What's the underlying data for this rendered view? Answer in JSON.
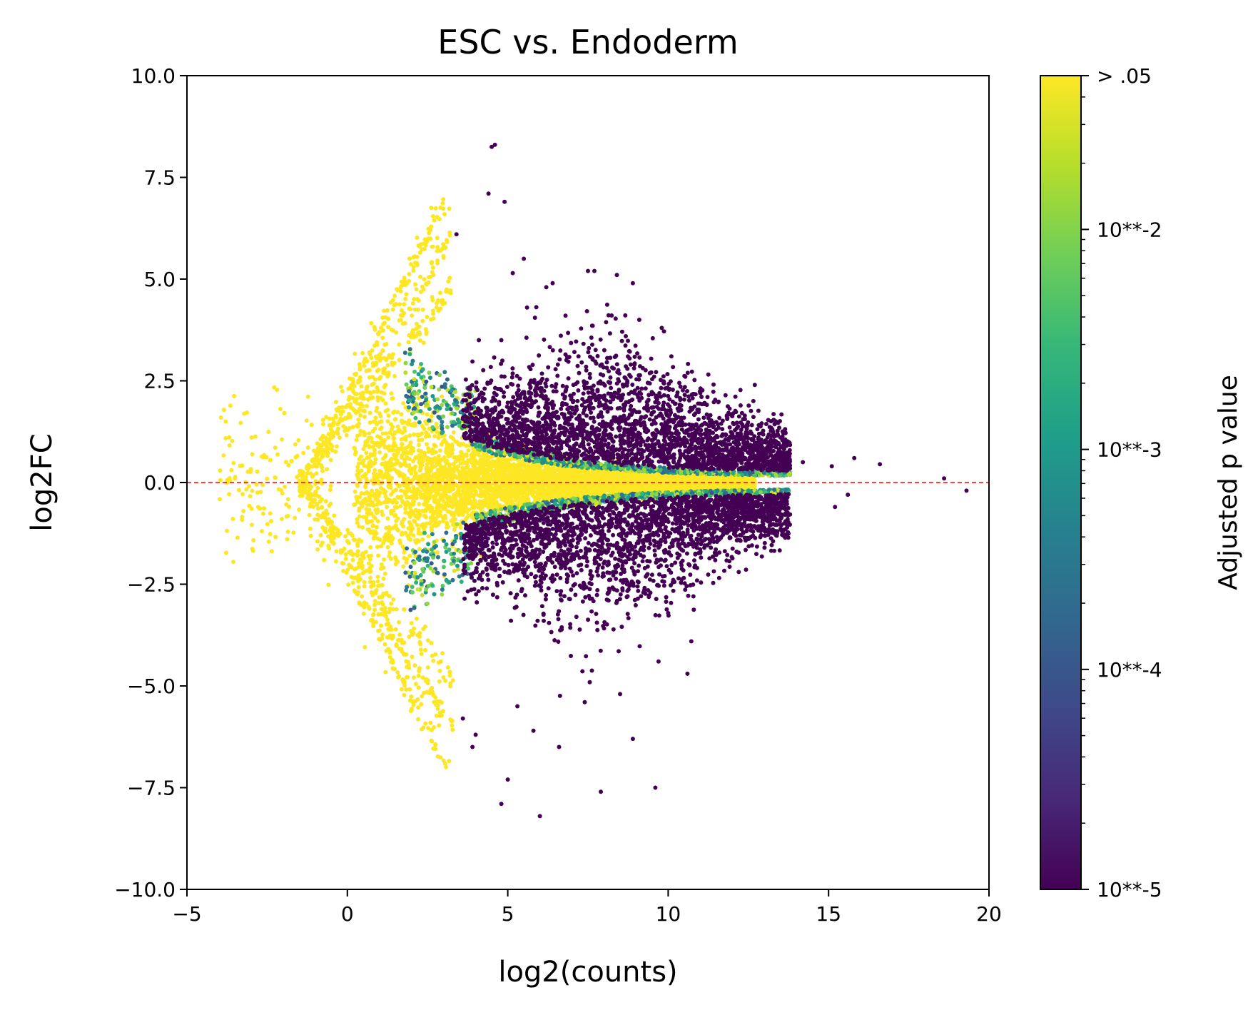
{
  "chart_data": {
    "type": "scatter",
    "title": "ESC vs. Endoderm",
    "xlabel": "log2(counts)",
    "ylabel": "log2FC",
    "xlim": [
      -5,
      20
    ],
    "ylim": [
      -10,
      10
    ],
    "xticks": [
      -5,
      0,
      5,
      10,
      15,
      20
    ],
    "xtick_labels": [
      "−5",
      "0",
      "5",
      "10",
      "15",
      "20"
    ],
    "yticks": [
      10,
      7.5,
      5,
      2.5,
      0,
      -2.5,
      -5,
      -7.5,
      -10
    ],
    "ytick_labels": [
      "10.0",
      "7.5",
      "5.0",
      "2.5",
      "0.0",
      "−2.5",
      "−5.0",
      "−7.5",
      "−10.0"
    ],
    "reference_line": {
      "y": 0,
      "color": "#ff0000",
      "style": "dashed"
    },
    "grid": false,
    "colorbar": {
      "label": "Adjusted p value",
      "colormap": "viridis",
      "scale": "log",
      "range": [
        1e-05,
        0.05
      ],
      "ticks": [
        {
          "value": 0.05,
          "label": "> .05"
        },
        {
          "value": 0.01,
          "label": "10**-2"
        },
        {
          "value": 0.001,
          "label": "10**-3"
        },
        {
          "value": 0.0001,
          "label": "10**-4"
        },
        {
          "value": 1e-05,
          "label": "10**-5"
        }
      ],
      "colors": [
        "#440154",
        "#482878",
        "#3e4989",
        "#31688e",
        "#26828e",
        "#1f9e89",
        "#35b779",
        "#6ece58",
        "#b5de2b",
        "#fde725"
      ]
    },
    "series": [
      {
        "points": [
          [
            4.5,
            8.25
          ],
          [
            4.6,
            8.3
          ],
          [
            4.4,
            7.1
          ],
          [
            4.9,
            6.9
          ],
          [
            3.4,
            6.1
          ],
          [
            5.5,
            5.5
          ],
          [
            7.5,
            5.2
          ],
          [
            7.7,
            5.2
          ],
          [
            8.4,
            5.1
          ],
          [
            8.9,
            4.9
          ],
          [
            6.4,
            4.9
          ],
          [
            6.2,
            4.8
          ],
          [
            10.1,
            3.1
          ],
          [
            11.3,
            1.5
          ],
          [
            12.7,
            2.4
          ],
          [
            14.2,
            0.5
          ],
          [
            15.1,
            0.4
          ],
          [
            15.8,
            0.6
          ],
          [
            16.6,
            0.45
          ],
          [
            18.6,
            0.1
          ],
          [
            19.3,
            -0.2
          ],
          [
            15.6,
            -0.3
          ],
          [
            15.2,
            -0.6
          ],
          [
            13.4,
            -1.2
          ],
          [
            12.2,
            -2.2
          ],
          [
            10.6,
            -4.7
          ],
          [
            9.7,
            -4.4
          ],
          [
            8.5,
            -5.2
          ],
          [
            8.9,
            -6.3
          ],
          [
            9.6,
            -7.5
          ],
          [
            7.9,
            -7.6
          ],
          [
            6.0,
            -8.2
          ],
          [
            4.8,
            -7.9
          ],
          [
            5.0,
            -7.3
          ],
          [
            4.0,
            -6.2
          ],
          [
            6.6,
            -6.5
          ],
          [
            5.3,
            -5.5
          ],
          [
            3.6,
            -5.8
          ],
          [
            3.9,
            -6.5
          ],
          [
            5.8,
            -6.1
          ],
          [
            7.4,
            -5.4
          ],
          [
            10.9,
            -2.1
          ],
          [
            11.7,
            -1.2
          ],
          [
            12.5,
            -0.9
          ],
          [
            13.0,
            0.6
          ],
          [
            12.0,
            1.2
          ],
          [
            11.0,
            2.2
          ],
          [
            9.8,
            3.8
          ],
          [
            9.1,
            4.0
          ],
          [
            6.8,
            4.1
          ],
          [
            5.6,
            4.3
          ],
          [
            4.8,
            3.5
          ],
          [
            4.1,
            3.5
          ]
        ]
      }
    ]
  }
}
